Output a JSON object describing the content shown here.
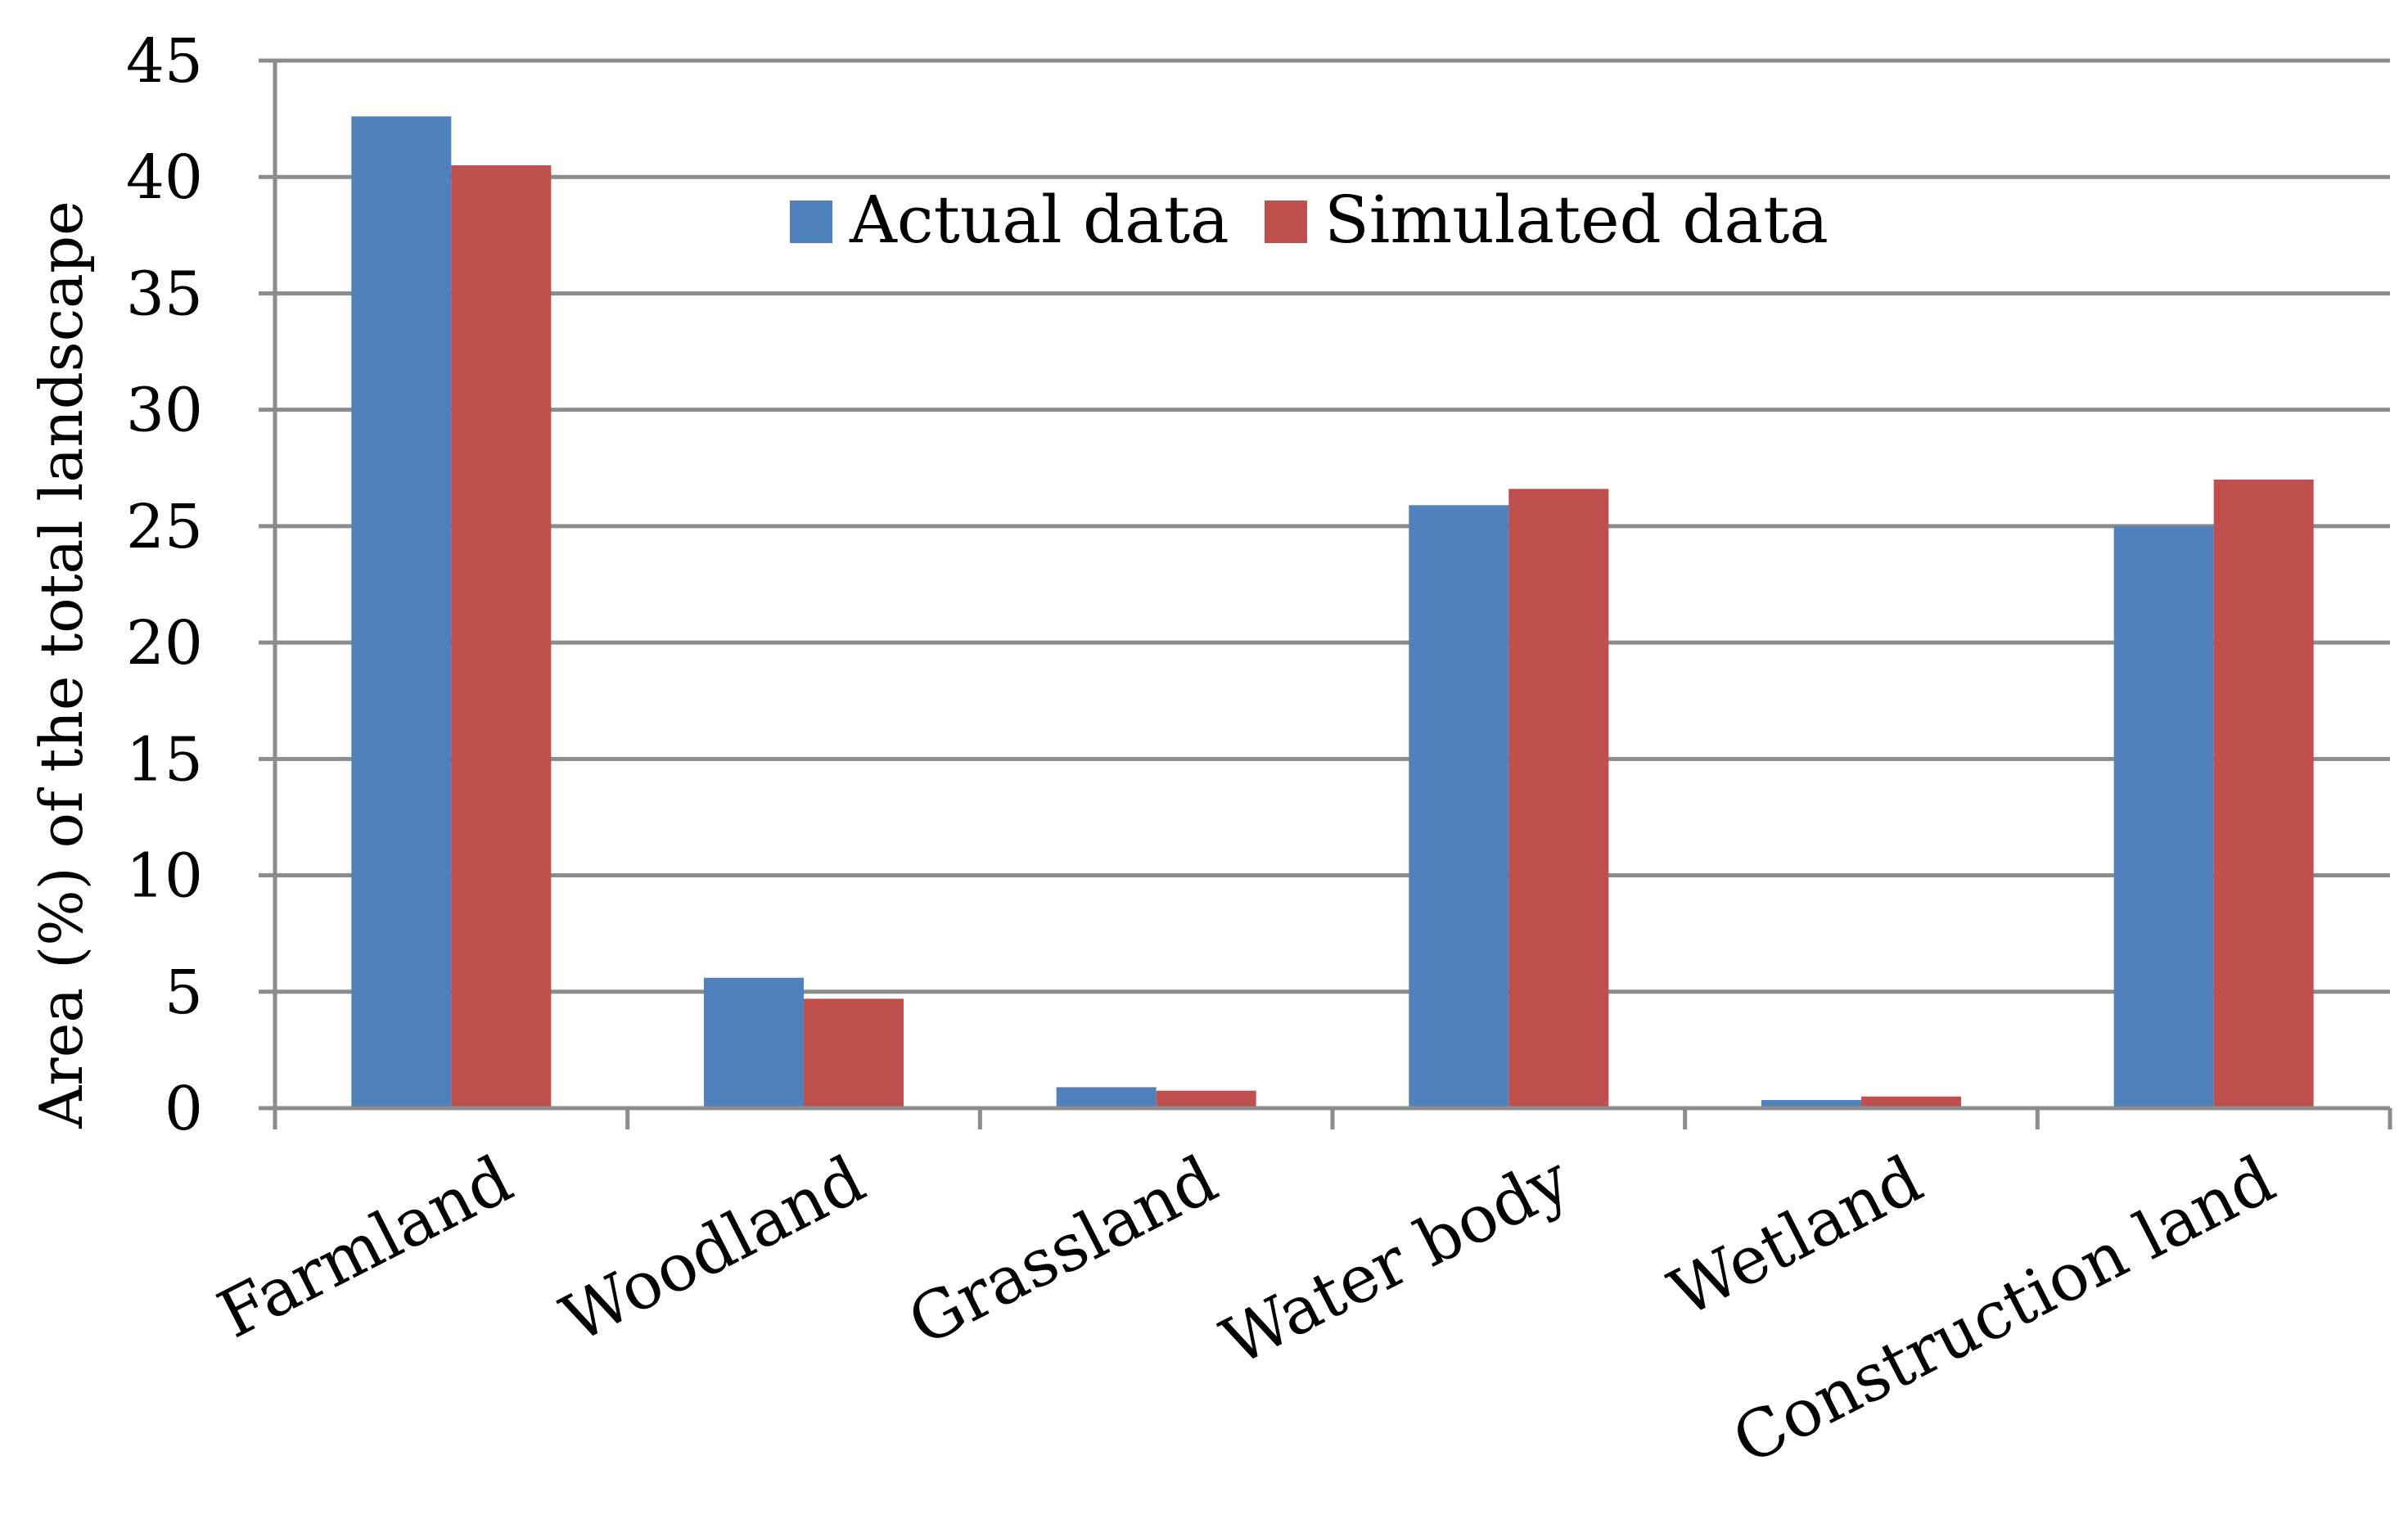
{
  "chart_data": {
    "type": "bar",
    "title": "",
    "xlabel": "",
    "ylabel": "Area (%) of the total landscape",
    "ylim": [
      0,
      45
    ],
    "yticks": [
      0,
      5,
      10,
      15,
      20,
      25,
      30,
      35,
      40,
      45
    ],
    "grid": true,
    "legend_position": "top-center",
    "categories": [
      "Farmland",
      "Woodland",
      "Grassland",
      "Water body",
      "Wetland",
      "Construction land"
    ],
    "series": [
      {
        "name": "Actual data",
        "color": "#4F81BD",
        "values": [
          42.6,
          5.6,
          0.9,
          25.9,
          0.35,
          25.0
        ]
      },
      {
        "name": "Simulated data",
        "color": "#C0504D",
        "values": [
          40.5,
          4.7,
          0.75,
          26.6,
          0.5,
          27.0
        ]
      }
    ]
  }
}
